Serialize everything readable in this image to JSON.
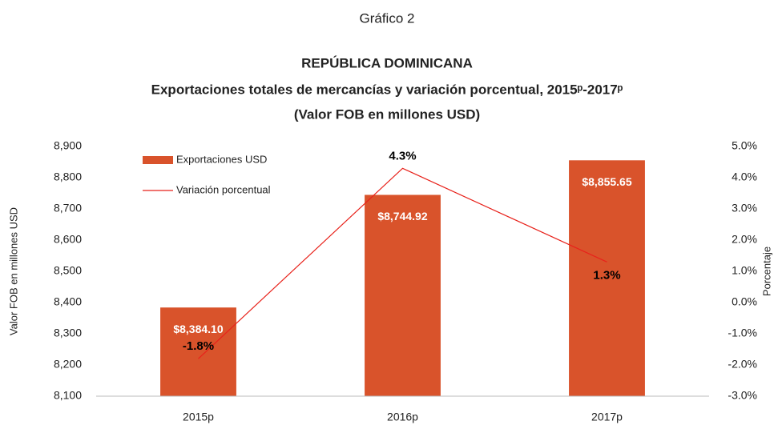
{
  "chart_data": {
    "type": "bar-line",
    "title": "Gráfico 2",
    "subtitle": [
      "REPÚBLICA DOMINICANA",
      "Exportaciones totales de mercancías y variación porcentual, 2015ᵖ-2017ᵖ",
      "(Valor FOB en millones USD)"
    ],
    "ylabel": "Valor FOB en millones USD",
    "y2label": "Porcentaje",
    "categories": [
      "2015p",
      "2016p",
      "2017p"
    ],
    "series": [
      {
        "name": "Exportaciones USD",
        "type": "bar",
        "color": "#d9532b",
        "values": [
          8384.1,
          8744.92,
          8855.65
        ],
        "value_labels": [
          "$8,384.10",
          "$8,744.92",
          "$8,855.65"
        ]
      },
      {
        "name": "Variación porcentual",
        "type": "line",
        "axis": "y2",
        "color": "#e8221b",
        "values": [
          -1.8,
          4.3,
          1.3
        ],
        "value_labels": [
          "-1.8%",
          "4.3%",
          "1.3%"
        ]
      }
    ],
    "ylim": [
      8100,
      8900
    ],
    "yticks": [
      {
        "value": 8100,
        "label": "8,100"
      },
      {
        "value": 8200,
        "label": "8,200"
      },
      {
        "value": 8300,
        "label": "8,300"
      },
      {
        "value": 8400,
        "label": "8,400"
      },
      {
        "value": 8500,
        "label": "8,500"
      },
      {
        "value": 8600,
        "label": "8,600"
      },
      {
        "value": 8700,
        "label": "8,700"
      },
      {
        "value": 8800,
        "label": "8,800"
      },
      {
        "value": 8900,
        "label": "8,900"
      }
    ],
    "y2lim": [
      -3.0,
      5.0
    ],
    "y2ticks": [
      {
        "value": -3.0,
        "label": "-3.0%"
      },
      {
        "value": -2.0,
        "label": "-2.0%"
      },
      {
        "value": -1.0,
        "label": "-1.0%"
      },
      {
        "value": 0.0,
        "label": "0.0%"
      },
      {
        "value": 1.0,
        "label": "1.0%"
      },
      {
        "value": 2.0,
        "label": "2.0%"
      },
      {
        "value": 3.0,
        "label": "3.0%"
      },
      {
        "value": 4.0,
        "label": "4.0%"
      },
      {
        "value": 5.0,
        "label": "5.0%"
      }
    ],
    "grid": false,
    "legend": "top-left"
  }
}
